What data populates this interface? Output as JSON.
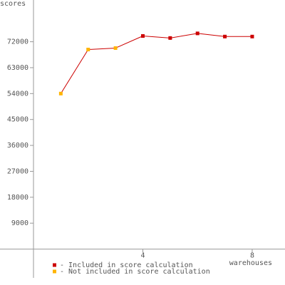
{
  "chart_data": {
    "type": "line",
    "y_label": "scores",
    "x_label": "warehouses",
    "x": [
      1,
      2,
      3,
      4,
      5,
      6,
      7,
      8
    ],
    "line_color": "#cc0000",
    "series": [
      {
        "name": "- Included in score calculation",
        "color": "#cc0000",
        "values": [
          null,
          null,
          null,
          74000,
          73300,
          74900,
          73800,
          73800
        ]
      },
      {
        "name": "- Not included in score calculation",
        "color": "#ffb400",
        "values": [
          54000,
          69300,
          69800,
          null,
          null,
          null,
          null,
          null
        ]
      }
    ],
    "xlim": [
      0,
      9.2
    ],
    "xticks": [
      4,
      8
    ],
    "ylim": [
      -10000,
      86000
    ],
    "yticks": [
      9000,
      18000,
      27000,
      36000,
      45000,
      54000,
      63000,
      72000
    ]
  }
}
